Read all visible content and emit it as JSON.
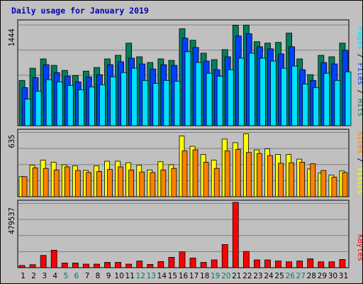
{
  "title": "Daily usage for January 2019",
  "colors": {
    "background": "#c0c0c0",
    "hits": "#00805c",
    "files": "#0040ff",
    "pages": "#00e0ff",
    "visits": "#ffff00",
    "sites": "#ff8000",
    "kbytes": "#ff0000",
    "weekend_label": "#00805c",
    "title": "#0000b0"
  },
  "chart_data": [
    {
      "type": "bar",
      "panel": "hits-files-pages",
      "categories": [
        "1",
        "2",
        "3",
        "4",
        "5",
        "6",
        "7",
        "8",
        "9",
        "10",
        "11",
        "12",
        "13",
        "14",
        "15",
        "16",
        "17",
        "18",
        "19",
        "20",
        "21",
        "22",
        "23",
        "24",
        "25",
        "26",
        "27",
        "28",
        "29",
        "30",
        "31"
      ],
      "weekend_days": [
        "5",
        "6",
        "12",
        "13",
        "19",
        "20",
        "26",
        "27"
      ],
      "ymax_label": "1444",
      "ylim": [
        0,
        1444
      ],
      "side_labels": [
        "Pages",
        "Files",
        "Hits"
      ],
      "series": [
        {
          "name": "Hits",
          "color": "#00805c",
          "values": [
            630,
            800,
            930,
            840,
            770,
            700,
            760,
            810,
            930,
            980,
            1150,
            960,
            880,
            930,
            910,
            1350,
            1190,
            1010,
            920,
            1060,
            1400,
            1400,
            1170,
            1150,
            1160,
            1290,
            930,
            710,
            980,
            960,
            1150
          ]
        },
        {
          "name": "Files",
          "color": "#0040ff",
          "values": [
            530,
            670,
            850,
            740,
            690,
            610,
            680,
            710,
            850,
            890,
            940,
            860,
            790,
            850,
            840,
            1220,
            1090,
            900,
            780,
            960,
            1250,
            1280,
            1100,
            1070,
            1000,
            1100,
            780,
            630,
            880,
            860,
            1050
          ]
        },
        {
          "name": "Pages",
          "color": "#00e0ff",
          "values": [
            370,
            480,
            640,
            610,
            560,
            500,
            540,
            570,
            680,
            740,
            800,
            630,
            590,
            630,
            620,
            1030,
            880,
            730,
            690,
            780,
            940,
            1010,
            940,
            900,
            800,
            830,
            580,
            530,
            730,
            630,
            750
          ]
        }
      ]
    },
    {
      "type": "bar",
      "panel": "visits-sites",
      "categories": [
        "1",
        "2",
        "3",
        "4",
        "5",
        "6",
        "7",
        "8",
        "9",
        "10",
        "11",
        "12",
        "13",
        "14",
        "15",
        "16",
        "17",
        "18",
        "19",
        "20",
        "21",
        "22",
        "23",
        "24",
        "25",
        "26",
        "27",
        "28",
        "29",
        "30",
        "31"
      ],
      "ymax_label": "635",
      "ylim": [
        0,
        635
      ],
      "side_labels": [
        "Sites",
        "Visits"
      ],
      "series": [
        {
          "name": "Visits",
          "color": "#ffff00",
          "values": [
            195,
            305,
            355,
            335,
            310,
            300,
            255,
            300,
            345,
            345,
            330,
            305,
            260,
            340,
            310,
            590,
            490,
            410,
            355,
            560,
            525,
            610,
            455,
            465,
            410,
            410,
            365,
            270,
            230,
            210,
            250
          ]
        },
        {
          "name": "Sites",
          "color": "#ff8000",
          "values": [
            195,
            280,
            275,
            260,
            290,
            255,
            235,
            245,
            265,
            290,
            260,
            240,
            235,
            260,
            275,
            445,
            455,
            335,
            275,
            445,
            460,
            430,
            420,
            400,
            325,
            330,
            335,
            320,
            255,
            190,
            235
          ]
        }
      ]
    },
    {
      "type": "bar",
      "panel": "kbytes",
      "categories": [
        "1",
        "2",
        "3",
        "4",
        "5",
        "6",
        "7",
        "8",
        "9",
        "10",
        "11",
        "12",
        "13",
        "14",
        "15",
        "16",
        "17",
        "18",
        "19",
        "20",
        "21",
        "22",
        "23",
        "24",
        "25",
        "26",
        "27",
        "28",
        "29",
        "30",
        "31"
      ],
      "ymax_label": "479537",
      "ylim": [
        0,
        479537
      ],
      "side_labels": [
        "KBytes"
      ],
      "series": [
        {
          "name": "KBytes",
          "color": "#ff0000",
          "values": [
            16000,
            22000,
            90000,
            128000,
            34000,
            34000,
            26000,
            26000,
            39000,
            39000,
            26000,
            49000,
            24000,
            45000,
            76000,
            116000,
            71000,
            39000,
            57000,
            170000,
            479537,
            119000,
            57000,
            57000,
            49000,
            43000,
            49000,
            65000,
            43000,
            43000,
            60000
          ]
        }
      ]
    }
  ]
}
